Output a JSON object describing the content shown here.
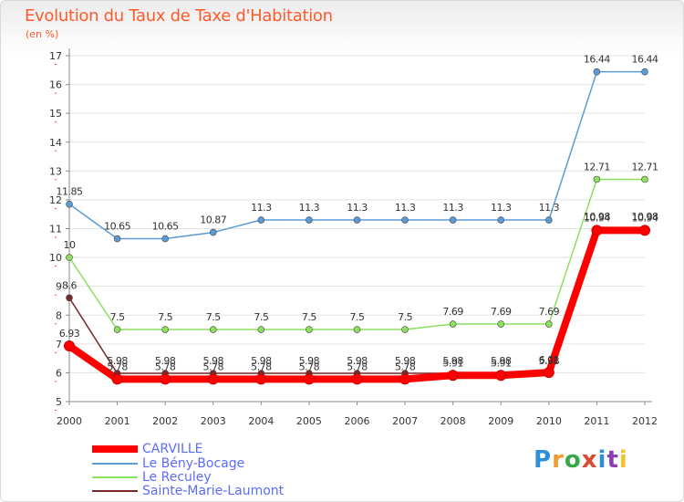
{
  "title": "Evolution du Taux de Taxe d'Habitation",
  "unit": "(en %)",
  "brand": "Proxiti",
  "colors": {
    "title": "#ff5a2c",
    "legend_text": "#5b6bff",
    "grid": "#e2e2e2",
    "axis": "#8a8a8a"
  },
  "chart_data": {
    "type": "line",
    "title": "Evolution du Taux de Taxe d'Habitation",
    "ylabel": "(en %)",
    "xlabel": "",
    "x": [
      "2000",
      "2001",
      "2002",
      "2003",
      "2004",
      "2005",
      "2006",
      "2007",
      "2008",
      "2009",
      "2010",
      "2011",
      "2012"
    ],
    "ylim": [
      5,
      17
    ],
    "yticks": [
      "5",
      "6",
      "7",
      "8",
      "9",
      "10",
      "11",
      "12",
      "13",
      "14",
      "15",
      "16",
      "17"
    ],
    "grid": "horizontal",
    "legend_position": "bottom-left",
    "series": [
      {
        "name": "CARVILLE",
        "color": "#ff0000",
        "values": [
          6.93,
          5.78,
          5.78,
          5.78,
          5.78,
          5.78,
          5.78,
          5.78,
          5.91,
          5.91,
          6.01,
          10.94,
          10.94
        ],
        "labels": [
          "6.93",
          "5.78",
          "5.78",
          "5.78",
          "5.78",
          "5.78",
          "5.78",
          "5.78",
          "5.91",
          "5.91",
          "6.01",
          "10.94",
          "10.94"
        ]
      },
      {
        "name": "Le Bény-Bocage",
        "color": "#5b9bd5",
        "values": [
          11.85,
          10.65,
          10.65,
          10.87,
          11.3,
          11.3,
          11.3,
          11.3,
          11.3,
          11.3,
          11.3,
          16.44,
          16.44
        ],
        "labels": [
          "11.85",
          "10.65",
          "10.65",
          "10.87",
          "11.3",
          "11.3",
          "11.3",
          "11.3",
          "11.3",
          "11.3",
          "11.3",
          "16.44",
          "16.44"
        ]
      },
      {
        "name": "Le Reculey",
        "color": "#8ddf5e",
        "values": [
          10,
          7.5,
          7.5,
          7.5,
          7.5,
          7.5,
          7.5,
          7.5,
          7.69,
          7.69,
          7.69,
          12.71,
          12.71
        ],
        "labels": [
          "10",
          "7.5",
          "7.5",
          "7.5",
          "7.5",
          "7.5",
          "7.5",
          "7.5",
          "7.69",
          "7.69",
          "7.69",
          "12.71",
          "12.71"
        ]
      },
      {
        "name": "Sainte-Marie-Laumont",
        "color": "#7a2a2a",
        "values": [
          8.6,
          5.98,
          5.98,
          5.98,
          5.98,
          5.98,
          5.98,
          5.98,
          5.98,
          5.98,
          5.98,
          10.98,
          10.98
        ],
        "labels": [
          "8.6",
          "5.98",
          "5.98",
          "5.98",
          "5.98",
          "5.98",
          "5.98",
          "5.98",
          "5.98",
          "5.98",
          "5.98",
          "10.98",
          "10.98"
        ]
      }
    ]
  }
}
